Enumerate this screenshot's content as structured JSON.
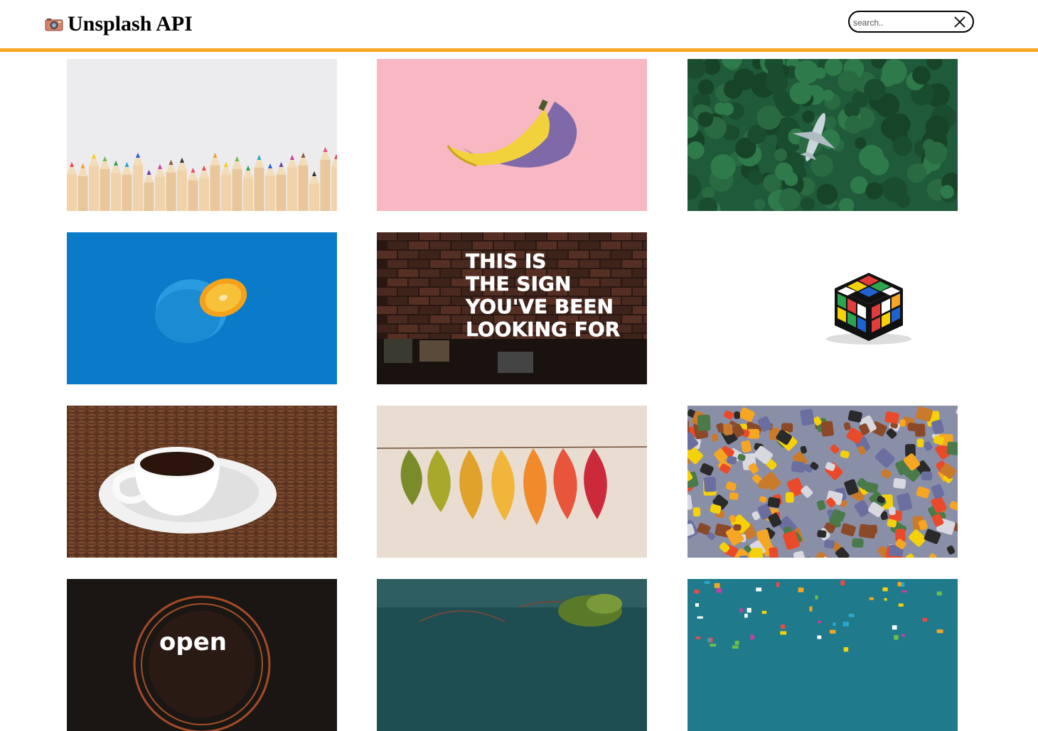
{
  "header": {
    "logo_icon": "camera-icon",
    "title": "Unsplash API",
    "accent_color": "#f5a623"
  },
  "search": {
    "placeholder": "search..",
    "value": "",
    "clear_icon": "close-icon"
  },
  "gallery": {
    "photos": [
      {
        "subject": "colored-pencils"
      },
      {
        "subject": "banana"
      },
      {
        "subject": "plane-in-forest"
      },
      {
        "subject": "blue-orange"
      },
      {
        "subject": "neon-sign",
        "sign_text": "THIS IS THE SIGN YOU'VE BEEN LOOKING FOR"
      },
      {
        "subject": "rubiks-cube"
      },
      {
        "subject": "coffee-cup"
      },
      {
        "subject": "autumn-leaves"
      },
      {
        "subject": "puzzle-pieces"
      },
      {
        "subject": "neon-circle"
      },
      {
        "subject": "water-plants"
      },
      {
        "subject": "confetti"
      }
    ]
  }
}
